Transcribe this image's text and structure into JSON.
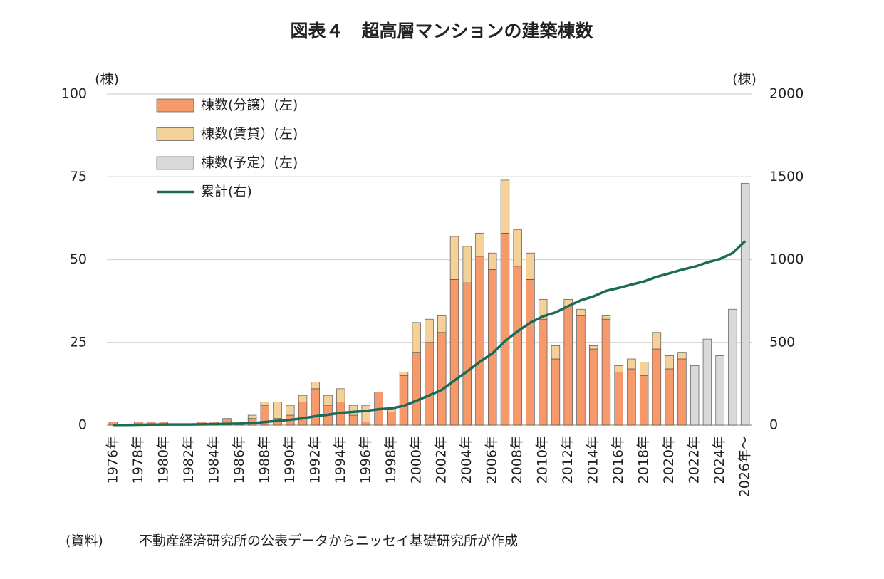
{
  "chart_data": {
    "type": "bar",
    "stacked": true,
    "title": "図表４　超高層マンションの建築棟数",
    "y_label": "(棟)",
    "y2_label": "(棟)",
    "source_label": "(資料)",
    "source": "不動産経済研究所の公表データからニッセイ基礎研究所が作成",
    "categories": [
      "1976年",
      null,
      "1978年",
      null,
      "1980年",
      null,
      "1982年",
      null,
      "1984年",
      null,
      "1986年",
      null,
      "1988年",
      null,
      "1990年",
      null,
      "1992年",
      null,
      "1994年",
      null,
      "1996年",
      null,
      "1998年",
      null,
      "2000年",
      null,
      "2002年",
      null,
      "2004年",
      null,
      "2006年",
      null,
      "2008年",
      null,
      "2010年",
      null,
      "2012年",
      null,
      "2014年",
      null,
      "2016年",
      null,
      "2018年",
      null,
      "2020年",
      null,
      "2022年",
      null,
      "2024年",
      null,
      "2026年～"
    ],
    "series": [
      {
        "name": "棟数(分譲）(左)",
        "color": "#f79a6b",
        "values": [
          1,
          0,
          1,
          1,
          1,
          0,
          0,
          1,
          1,
          2,
          1,
          2,
          6,
          2,
          3,
          7,
          11,
          6,
          7,
          3,
          1,
          10,
          4,
          15,
          22,
          25,
          28,
          44,
          43,
          51,
          47,
          58,
          48,
          44,
          32,
          20,
          36,
          33,
          23,
          32,
          16,
          17,
          15,
          23,
          17,
          20,
          null,
          null,
          null,
          null,
          null
        ]
      },
      {
        "name": "棟数(賃貸）(左)",
        "color": "#f5d19a",
        "values": [
          0,
          0,
          0,
          0,
          0,
          0,
          0,
          0,
          0,
          0,
          0,
          1,
          1,
          5,
          3,
          2,
          2,
          3,
          4,
          3,
          5,
          0,
          1,
          1,
          9,
          7,
          5,
          13,
          11,
          7,
          5,
          16,
          11,
          8,
          6,
          4,
          2,
          2,
          1,
          1,
          2,
          3,
          4,
          5,
          4,
          2,
          null,
          null,
          null,
          null,
          null
        ]
      },
      {
        "name": "棟数(予定）(左)",
        "color": "#d9d9d9",
        "values": [
          null,
          null,
          null,
          null,
          null,
          null,
          null,
          null,
          null,
          null,
          null,
          null,
          null,
          null,
          null,
          null,
          null,
          null,
          null,
          null,
          null,
          null,
          null,
          null,
          null,
          null,
          null,
          null,
          null,
          null,
          null,
          null,
          null,
          null,
          null,
          null,
          null,
          null,
          null,
          null,
          null,
          null,
          null,
          null,
          null,
          null,
          18,
          26,
          21,
          35,
          73
        ]
      },
      {
        "name": "累計(右)",
        "type": "line",
        "axis": "y2",
        "color": "#1b6b5a",
        "values": [
          1,
          1,
          2,
          3,
          4,
          4,
          4,
          5,
          6,
          8,
          9,
          12,
          19,
          26,
          32,
          41,
          54,
          63,
          74,
          80,
          86,
          96,
          101,
          117,
          148,
          180,
          213,
          270,
          324,
          382,
          434,
          508,
          567,
          619,
          657,
          681,
          719,
          754,
          778,
          811,
          829,
          849,
          868,
          896,
          917,
          939,
          957,
          983,
          1004,
          1039,
          1112
        ]
      }
    ],
    "ylim": [
      0,
      100
    ],
    "yticks": [
      0,
      25,
      50,
      75,
      100
    ],
    "y2lim": [
      0,
      2000
    ],
    "y2ticks": [
      0,
      500,
      1000,
      1500,
      2000
    ],
    "grid": true,
    "legend": "upper left"
  }
}
